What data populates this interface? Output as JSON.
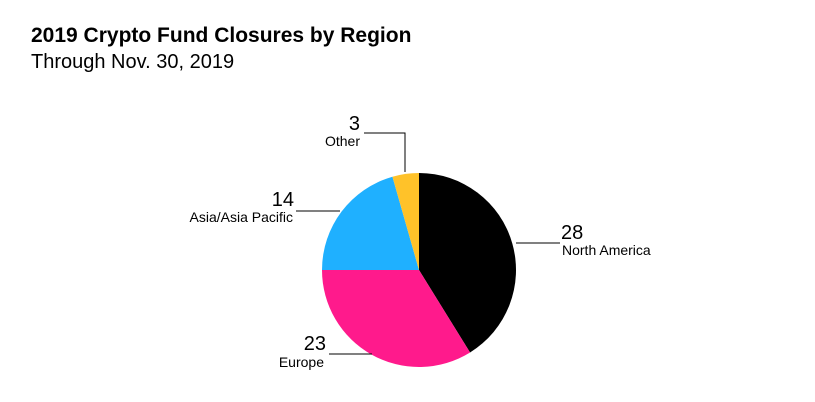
{
  "title": "2019 Crypto Fund Closures by Region",
  "subtitle": "Through Nov. 30, 2019",
  "chart_data": {
    "type": "pie",
    "title": "2019 Crypto Fund Closures by Region",
    "subtitle": "Through Nov. 30, 2019",
    "start": "12 o'clock, clockwise",
    "slices": [
      {
        "label": "North America",
        "value": 28,
        "color": "#000000"
      },
      {
        "label": "Europe",
        "value": 23,
        "color": "#ff1a8c"
      },
      {
        "label": "Asia/Asia Pacific",
        "value": 14,
        "color": "#1fb0ff"
      },
      {
        "label": "Other",
        "value": 3,
        "color": "#ffc229"
      }
    ]
  }
}
